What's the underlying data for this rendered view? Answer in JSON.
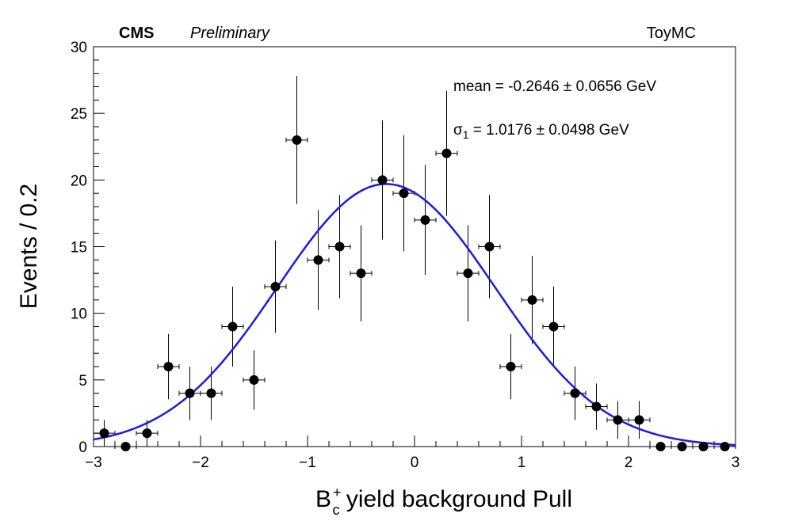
{
  "header": {
    "experiment": "CMS",
    "status": "Preliminary",
    "sample": "ToyMC"
  },
  "fit_stats": {
    "mean_line": "mean = -0.2646 ± 0.0656 GeV",
    "sigma_symbol": "σ",
    "sigma_subscript": "1",
    "sigma_value": " = 1.0176 ± 0.0498 GeV"
  },
  "axes": {
    "ylabel": "Events / 0.2",
    "xlabel_base": "B",
    "xlabel_sup": "+",
    "xlabel_sub": "c",
    "xlabel_rest": " yield background Pull"
  },
  "chart_data": {
    "type": "scatter",
    "xlim": [
      -3,
      3
    ],
    "ylim": [
      0,
      30
    ],
    "x_ticks": [
      "−3",
      "−2",
      "−1",
      "0",
      "1",
      "2",
      "3"
    ],
    "x_tick_values": [
      -3,
      -2,
      -1,
      0,
      1,
      2,
      3
    ],
    "y_ticks": [
      "0",
      "5",
      "10",
      "15",
      "20",
      "25",
      "30"
    ],
    "y_tick_values": [
      0,
      5,
      10,
      15,
      20,
      25,
      30
    ],
    "bin_width": 0.2,
    "grid": false,
    "points": {
      "x": [
        -2.9,
        -2.7,
        -2.5,
        -2.3,
        -2.1,
        -1.9,
        -1.7,
        -1.5,
        -1.3,
        -1.1,
        -0.9,
        -0.7,
        -0.5,
        -0.3,
        -0.1,
        0.1,
        0.3,
        0.5,
        0.7,
        0.9,
        1.1,
        1.3,
        1.5,
        1.7,
        1.9,
        2.1,
        2.3,
        2.5,
        2.7,
        2.9
      ],
      "y": [
        1,
        0,
        1,
        6,
        4,
        4,
        9,
        5,
        12,
        23,
        14,
        15,
        13,
        20,
        19,
        17,
        22,
        13,
        15,
        6,
        11,
        9,
        4,
        3,
        2,
        2,
        0,
        0,
        0,
        0
      ]
    },
    "fit_curve": {
      "type": "gaussian",
      "color": "#1a1ae6",
      "mean": -0.2646,
      "sigma": 1.0176,
      "amplitude": 19.7
    }
  }
}
